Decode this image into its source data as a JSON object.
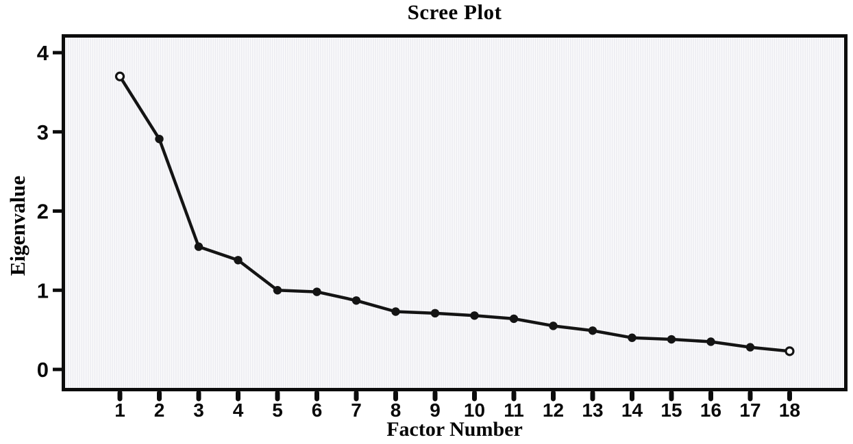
{
  "chart_data": {
    "type": "line",
    "title": "Scree Plot",
    "xlabel": "Factor Number",
    "ylabel": "Eigenvalue",
    "x": [
      1,
      2,
      3,
      4,
      5,
      6,
      7,
      8,
      9,
      10,
      11,
      12,
      13,
      14,
      15,
      16,
      17,
      18
    ],
    "values": [
      3.7,
      2.91,
      1.55,
      1.38,
      1.0,
      0.98,
      0.87,
      0.73,
      0.71,
      0.68,
      0.64,
      0.55,
      0.49,
      0.4,
      0.38,
      0.35,
      0.28,
      0.23
    ],
    "y_ticks": [
      0,
      1,
      2,
      3,
      4
    ],
    "x_ticks": [
      1,
      2,
      3,
      4,
      5,
      6,
      7,
      8,
      9,
      10,
      11,
      12,
      13,
      14,
      15,
      16,
      17,
      18
    ],
    "ylim": [
      -0.28,
      4.23
    ],
    "grid": false,
    "legend": null,
    "open_marker_factors": [
      1,
      18
    ],
    "colors": {
      "line": "#141414",
      "marker_fill": "#141414",
      "open_marker_center": "#ffffff",
      "frame": "#0c0c0c",
      "tick": "#0c0c0c",
      "plot_bg": "#fbfbfc",
      "stripe": "#ececf1",
      "text": "#0a0a0a",
      "page_bg": "#ffffff"
    }
  }
}
